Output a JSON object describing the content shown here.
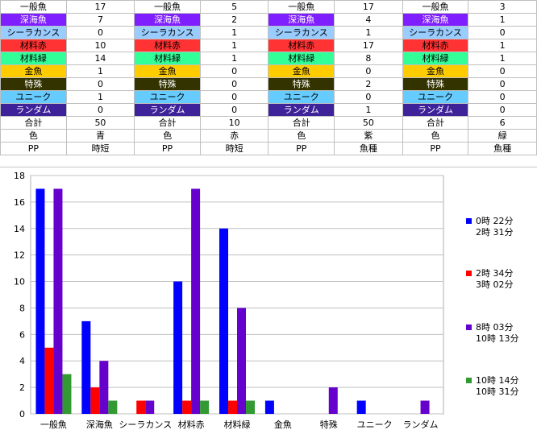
{
  "sheet": {
    "row_labels": [
      "一般魚",
      "深海魚",
      "シーラカンス",
      "材料赤",
      "材料緑",
      "金魚",
      "特殊",
      "ユニーク",
      "ランダム",
      "合計",
      "色",
      "PP"
    ],
    "row_colors": [
      {
        "bg": "#ffffff",
        "fg": "#000000"
      },
      {
        "bg": "#7f1fff",
        "fg": "#ffffff"
      },
      {
        "bg": "#99ccff",
        "fg": "#000000"
      },
      {
        "bg": "#ff3333",
        "fg": "#000000"
      },
      {
        "bg": "#33ff99",
        "fg": "#000000"
      },
      {
        "bg": "#ffcc00",
        "fg": "#000000"
      },
      {
        "bg": "#333300",
        "fg": "#ffffff"
      },
      {
        "bg": "#66ccff",
        "fg": "#000000"
      },
      {
        "bg": "#3d2299",
        "fg": "#ffffff"
      },
      {
        "bg": "#ffffff",
        "fg": "#000000"
      },
      {
        "bg": "#ffffff",
        "fg": "#000000"
      },
      {
        "bg": "#ffffff",
        "fg": "#000000"
      }
    ],
    "groups": [
      {
        "values": [
          "17",
          "7",
          "0",
          "10",
          "14",
          "1",
          "0",
          "1",
          "0",
          "50",
          "青",
          "時短"
        ]
      },
      {
        "values": [
          "5",
          "2",
          "1",
          "1",
          "1",
          "0",
          "0",
          "0",
          "0",
          "10",
          "赤",
          "時短"
        ]
      },
      {
        "values": [
          "17",
          "4",
          "1",
          "17",
          "8",
          "0",
          "2",
          "0",
          "1",
          "50",
          "紫",
          "魚種"
        ]
      },
      {
        "values": [
          "3",
          "1",
          "0",
          "1",
          "1",
          "0",
          "0",
          "0",
          "0",
          "6",
          "緑",
          "魚種"
        ]
      }
    ]
  },
  "chart_data": {
    "type": "bar",
    "categories": [
      "一般魚",
      "深海魚",
      "シーラカンス",
      "材料赤",
      "材料緑",
      "金魚",
      "特殊",
      "ユニーク",
      "ランダム"
    ],
    "series": [
      {
        "name": "0時 22分\n2時 31分",
        "color": "#0000ff",
        "values": [
          17,
          7,
          0,
          10,
          14,
          1,
          0,
          1,
          0
        ]
      },
      {
        "name": "2時 34分\n3時 02分",
        "color": "#ff0000",
        "values": [
          5,
          2,
          1,
          1,
          1,
          0,
          0,
          0,
          0
        ]
      },
      {
        "name": "8時 03分\n10時 13分",
        "color": "#6600cc",
        "values": [
          17,
          4,
          1,
          17,
          8,
          0,
          2,
          0,
          1
        ]
      },
      {
        "name": "10時 14分\n10時 31分",
        "color": "#339933",
        "values": [
          3,
          1,
          0,
          1,
          1,
          0,
          0,
          0,
          0
        ]
      }
    ],
    "y_ticks": [
      0,
      2,
      4,
      6,
      8,
      10,
      12,
      14,
      16,
      18
    ],
    "ylim": [
      0,
      18
    ],
    "grid": true,
    "legend": "right"
  }
}
